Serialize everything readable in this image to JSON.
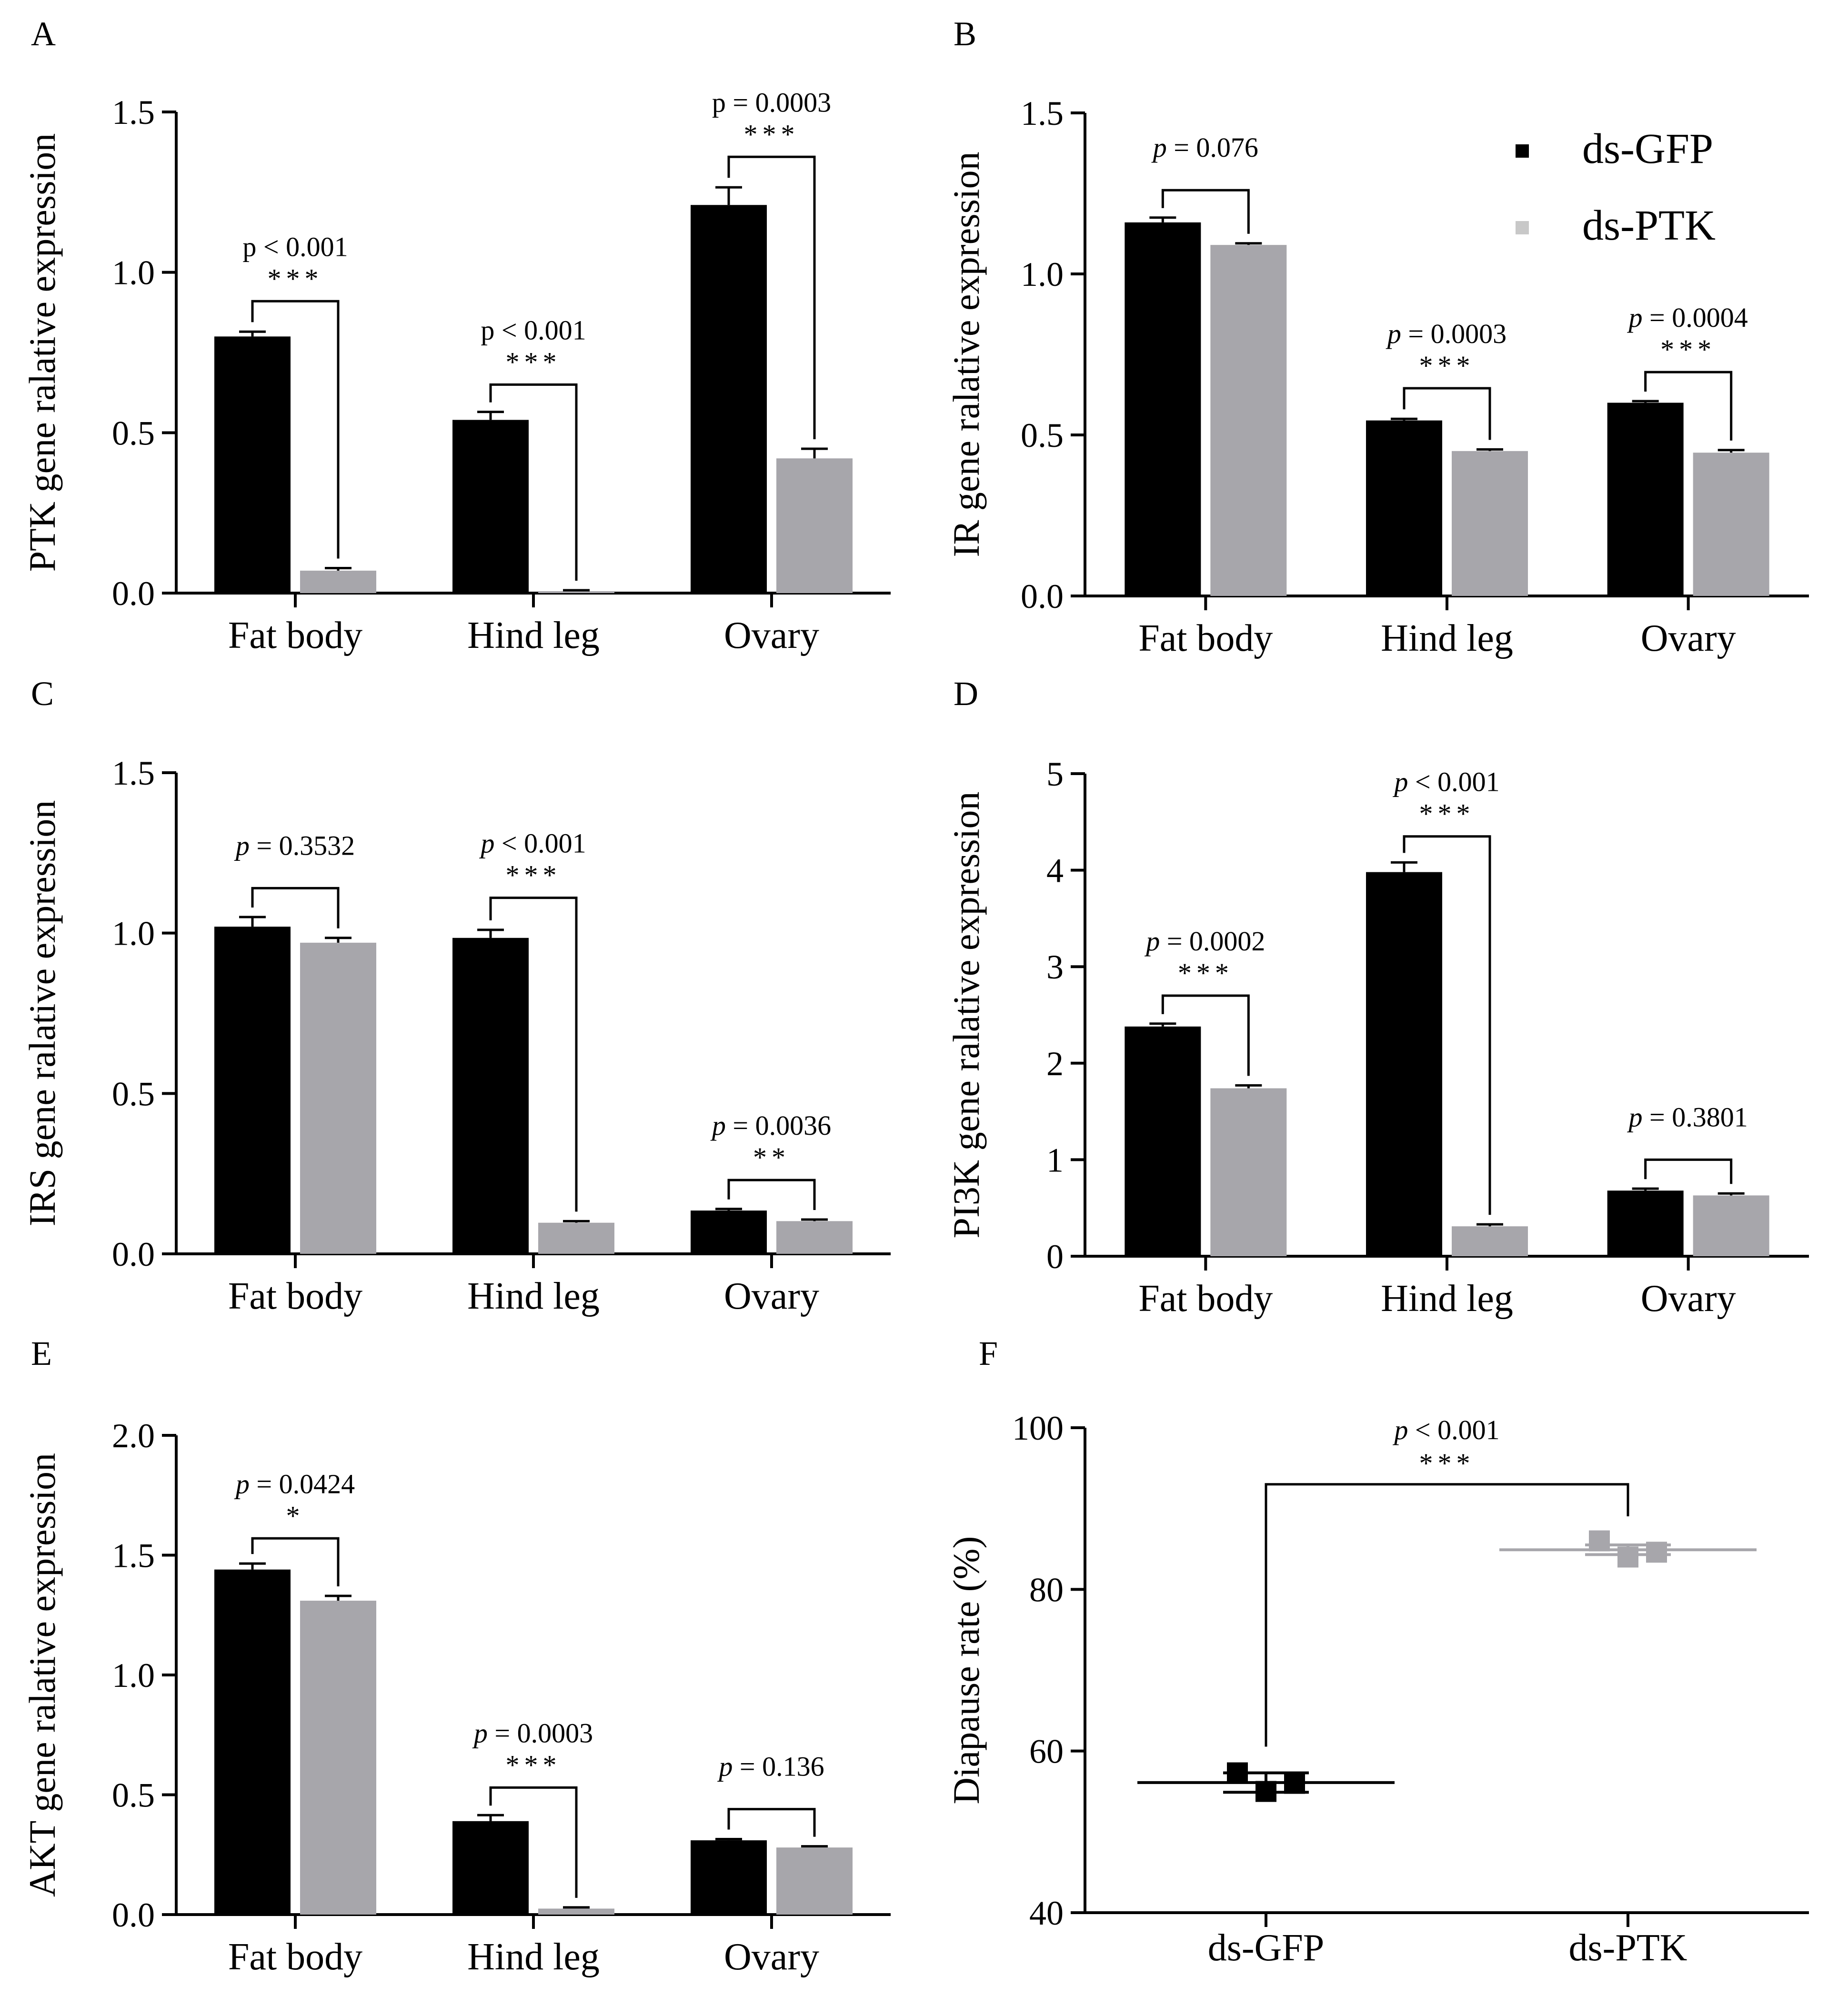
{
  "colors": {
    "ds_gfp": "#000000",
    "ds_ptk": "#a7a6ab",
    "legend_ptk_text": "#a7a6ab",
    "axis": "#000000"
  },
  "legend": {
    "series": [
      "ds-GFP",
      "ds-PTK"
    ]
  },
  "chart_data": [
    {
      "panel": "A",
      "type": "bar",
      "ylabel": "PTK gene ralative expression",
      "categories": [
        "Fat body",
        "Hind leg",
        "Ovary"
      ],
      "ylim": [
        0,
        1.5
      ],
      "yticks": [
        "0.0",
        "0.5",
        "1.0",
        "1.5"
      ],
      "series": [
        {
          "name": "ds-GFP",
          "values": [
            0.8,
            0.54,
            1.21
          ],
          "errors": [
            0.015,
            0.025,
            0.055
          ]
        },
        {
          "name": "ds-PTK",
          "values": [
            0.07,
            0.006,
            0.42
          ],
          "errors": [
            0.008,
            0.003,
            0.03
          ]
        }
      ],
      "annotations": [
        {
          "category": 0,
          "p": "p < 0.001",
          "stars": "***",
          "italic_p": false,
          "top": 0.91
        },
        {
          "category": 1,
          "p": "p < 0.001",
          "stars": "***",
          "italic_p": false,
          "top": 0.65
        },
        {
          "category": 2,
          "p": "p = 0.0003",
          "stars": "***",
          "italic_p": false,
          "top": 1.36
        }
      ]
    },
    {
      "panel": "B",
      "type": "bar",
      "ylabel": "IR gene ralative expression",
      "categories": [
        "Fat body",
        "Hind leg",
        "Ovary"
      ],
      "ylim": [
        0,
        1.5
      ],
      "yticks": [
        "0.0",
        "0.5",
        "1.0",
        "1.5"
      ],
      "series": [
        {
          "name": "ds-GFP",
          "values": [
            1.16,
            0.545,
            0.6
          ],
          "errors": [
            0.015,
            0.005,
            0.005
          ]
        },
        {
          "name": "ds-PTK",
          "values": [
            1.09,
            0.45,
            0.445
          ],
          "errors": [
            0.005,
            0.005,
            0.008
          ]
        }
      ],
      "annotations": [
        {
          "category": 0,
          "p": "= 0.076",
          "stars": "",
          "italic_p": true,
          "top": 1.26
        },
        {
          "category": 1,
          "p": "= 0.0003",
          "stars": "***",
          "italic_p": true,
          "top": 0.645
        },
        {
          "category": 2,
          "p": "= 0.0004",
          "stars": "***",
          "italic_p": true,
          "top": 0.695
        }
      ]
    },
    {
      "panel": "C",
      "type": "bar",
      "ylabel": "IRS gene ralative expression",
      "categories": [
        "Fat body",
        "Hind leg",
        "Ovary"
      ],
      "ylim": [
        0,
        1.5
      ],
      "yticks": [
        "0.0",
        "0.5",
        "1.0",
        "1.5"
      ],
      "series": [
        {
          "name": "ds-GFP",
          "values": [
            1.02,
            0.985,
            0.135
          ],
          "errors": [
            0.03,
            0.025,
            0.005
          ]
        },
        {
          "name": "ds-PTK",
          "values": [
            0.97,
            0.097,
            0.102
          ],
          "errors": [
            0.015,
            0.005,
            0.005
          ]
        }
      ],
      "annotations": [
        {
          "category": 0,
          "p": "= 0.3532",
          "stars": "",
          "italic_p": true,
          "top": 1.14
        },
        {
          "category": 1,
          "p": "< 0.001",
          "stars": "***",
          "italic_p": true,
          "top": 1.11
        },
        {
          "category": 2,
          "p": "= 0.0036",
          "stars": "**",
          "italic_p": true,
          "top": 0.23
        }
      ]
    },
    {
      "panel": "D",
      "type": "bar",
      "ylabel": "PI3K gene ralative expression",
      "categories": [
        "Fat body",
        "Hind leg",
        "Ovary"
      ],
      "ylim": [
        0,
        5
      ],
      "yticks": [
        "0",
        "1",
        "2",
        "3",
        "4",
        "5"
      ],
      "series": [
        {
          "name": "ds-GFP",
          "values": [
            2.38,
            3.98,
            0.68
          ],
          "errors": [
            0.03,
            0.1,
            0.02
          ]
        },
        {
          "name": "ds-PTK",
          "values": [
            1.74,
            0.31,
            0.63
          ],
          "errors": [
            0.03,
            0.02,
            0.02
          ]
        }
      ],
      "annotations": [
        {
          "category": 0,
          "p": "= 0.0002",
          "stars": "***",
          "italic_p": true,
          "top": 2.7
        },
        {
          "category": 1,
          "p": "< 0.001",
          "stars": "***",
          "italic_p": true,
          "top": 4.35
        },
        {
          "category": 2,
          "p": "= 0.3801",
          "stars": "",
          "italic_p": true,
          "top": 1.0
        }
      ]
    },
    {
      "panel": "E",
      "type": "bar",
      "ylabel": "AKT gene ralative expression",
      "categories": [
        "Fat body",
        "Hind leg",
        "Ovary"
      ],
      "ylim": [
        0,
        2.0
      ],
      "yticks": [
        "0.0",
        "0.5",
        "1.0",
        "1.5",
        "2.0"
      ],
      "series": [
        {
          "name": "ds-GFP",
          "values": [
            1.44,
            0.39,
            0.31
          ],
          "errors": [
            0.025,
            0.025,
            0.005
          ]
        },
        {
          "name": "ds-PTK",
          "values": [
            1.31,
            0.025,
            0.28
          ],
          "errors": [
            0.02,
            0.005,
            0.005
          ]
        }
      ],
      "annotations": [
        {
          "category": 0,
          "p": "= 0.0424",
          "stars": "*",
          "italic_p": true,
          "top": 1.57
        },
        {
          "category": 1,
          "p": "= 0.0003",
          "stars": "***",
          "italic_p": true,
          "top": 0.53
        },
        {
          "category": 2,
          "p": "= 0.136",
          "stars": "",
          "italic_p": true,
          "top": 0.44
        }
      ]
    },
    {
      "panel": "F",
      "type": "scatter",
      "ylabel": "Diapause rate (%)",
      "categories": [
        "ds-GFP",
        "ds-PTK"
      ],
      "ylim": [
        40,
        100
      ],
      "yticks": [
        "40",
        "60",
        "80",
        "100"
      ],
      "groups": [
        {
          "name": "ds-GFP",
          "points": [
            57.3,
            55.0,
            56.0
          ],
          "mean": 56.1,
          "error": 1.2
        },
        {
          "name": "ds-PTK",
          "points": [
            86.0,
            84.0,
            84.6
          ],
          "mean": 84.9,
          "error": 0.6
        }
      ],
      "annotation": {
        "p": "< 0.001",
        "stars": "***",
        "italic_p": true,
        "top": 93
      }
    }
  ]
}
